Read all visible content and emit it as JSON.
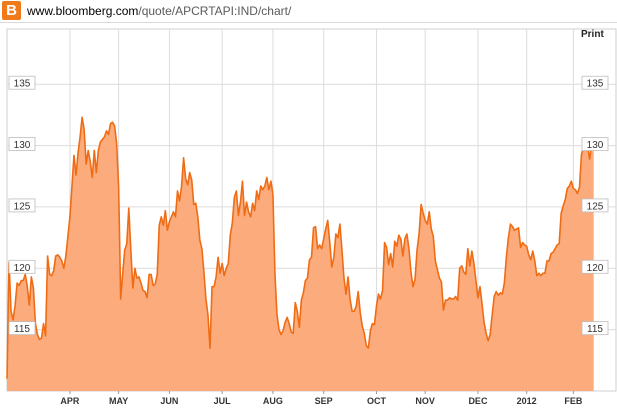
{
  "browser": {
    "site_icon_letter": "B",
    "url_domain": "www.bloomberg.com",
    "url_path": "/quote/APCRTAPI:IND/chart/"
  },
  "toolbar": {
    "print_label": "Print"
  },
  "chart_data": {
    "type": "area",
    "title": "",
    "xlabel": "",
    "ylabel": "",
    "ylim": [
      110,
      139.5
    ],
    "y_ticks": [
      115,
      120,
      125,
      130,
      135
    ],
    "x_tick_labels": [
      "APR",
      "MAY",
      "JUN",
      "JUL",
      "AUG",
      "SEP",
      "OCT",
      "NOV",
      "DEC",
      "2012",
      "FEB"
    ],
    "x_index_range": [
      0,
      300
    ],
    "x_tick_index": [
      31,
      55,
      80,
      106,
      131,
      156,
      182,
      206,
      232,
      256,
      279
    ],
    "colors": {
      "line": "#f06c14",
      "fill": "#fbab7c",
      "grid": "#dcdcdc",
      "frame": "#cfcfcf"
    },
    "series": [
      {
        "values": [
          111,
          120.5,
          116.5,
          115.8,
          117,
          118.8,
          118.6,
          119,
          119,
          119.5,
          118.5,
          117,
          119.3,
          118.4,
          115.5,
          114.6,
          114.2,
          114.3,
          115.5,
          114.5,
          121,
          119.5,
          119.4,
          119.8,
          121,
          121.1,
          120.9,
          120.6,
          120,
          121,
          122.6,
          124.2,
          126.7,
          129.2,
          127.6,
          129.4,
          130.7,
          132.3,
          131.3,
          128.5,
          129.6,
          128.7,
          127.4,
          129.6,
          127.8,
          129.6,
          130.3,
          130.5,
          130.7,
          131.2,
          130.9,
          131.8,
          131.9,
          131.6,
          130.2,
          126.6,
          117.5,
          119.6,
          121.5,
          122,
          124.9,
          121.5,
          118.4,
          120,
          119.2,
          119.3,
          118.8,
          118.2,
          118.1,
          117.6,
          119.5,
          119.5,
          118.6,
          118.7,
          119.5,
          123.5,
          124.2,
          123.5,
          124.7,
          123.1,
          123.8,
          124.2,
          124.6,
          124.2,
          126.3,
          125.5,
          126.7,
          129,
          127.3,
          126.8,
          127.8,
          127.2,
          125.2,
          125.3,
          124.2,
          122.3,
          121.6,
          119.7,
          117.5,
          116.2,
          113.5,
          118.5,
          118.5,
          119.3,
          120.9,
          119.6,
          120.4,
          119.4,
          120,
          120.4,
          122.7,
          123.7,
          125.8,
          126.3,
          124.3,
          125.4,
          127.1,
          124.3,
          125.4,
          124.6,
          124.2,
          125.3,
          124.7,
          126.3,
          125.6,
          126.7,
          126.4,
          126.7,
          127.4,
          126.4,
          127.1,
          126,
          119.5,
          116.2,
          115,
          114.6,
          114.9,
          115.6,
          116,
          115.5,
          114.8,
          114.7,
          117.2,
          116.5,
          115.2,
          117.4,
          118,
          119,
          119.2,
          120.7,
          120.9,
          123.3,
          123.4,
          121.6,
          121.9,
          121.6,
          122.4,
          123.2,
          123.9,
          122.1,
          120.1,
          120.9,
          122.8,
          122.5,
          123.6,
          121.5,
          119.2,
          117.9,
          119.3,
          117.5,
          116.5,
          116.5,
          116.9,
          118.1,
          116.4,
          115.3,
          114.7,
          113.7,
          113.5,
          114.9,
          115.5,
          115.4,
          116.9,
          117.9,
          117.5,
          118.2,
          122.1,
          121.7,
          120.3,
          121.2,
          120.1,
          122.2,
          121.8,
          122.7,
          122.4,
          121,
          122.4,
          122.8,
          121.6,
          119.7,
          118.5,
          119.1,
          121.5,
          122.8,
          125.2,
          124.5,
          123.9,
          123.6,
          124.6,
          123.2,
          122.6,
          120.6,
          119.9,
          119.2,
          118.9,
          116.6,
          117.4,
          117.4,
          117.6,
          117.5,
          117.5,
          117.7,
          117.4,
          120,
          120.2,
          119.7,
          119.5,
          121.6,
          120.2,
          121.4,
          120.4,
          119,
          117.6,
          118.5,
          117.1,
          115.6,
          114.7,
          114.1,
          114.6,
          116.2,
          117.7,
          118.1,
          117.8,
          118,
          117.9,
          118.8,
          120.9,
          122.5,
          123.6,
          123.4,
          123.1,
          123.2,
          123.3,
          121.7,
          122.1,
          121.9,
          121.8,
          121.1,
          120.7,
          121.4,
          120.6,
          119.4,
          119.6,
          119.4,
          119.6,
          119.6,
          120.6,
          120.6,
          121.2,
          121.3,
          121.6,
          121.9,
          122,
          124.5,
          125.1,
          125.6,
          126.5,
          126.7,
          127.1,
          126.5,
          126.4,
          126.1,
          126.6,
          129.3,
          129.8,
          129.7,
          129.9,
          128.9,
          130.1,
          130.3
        ]
      }
    ]
  }
}
